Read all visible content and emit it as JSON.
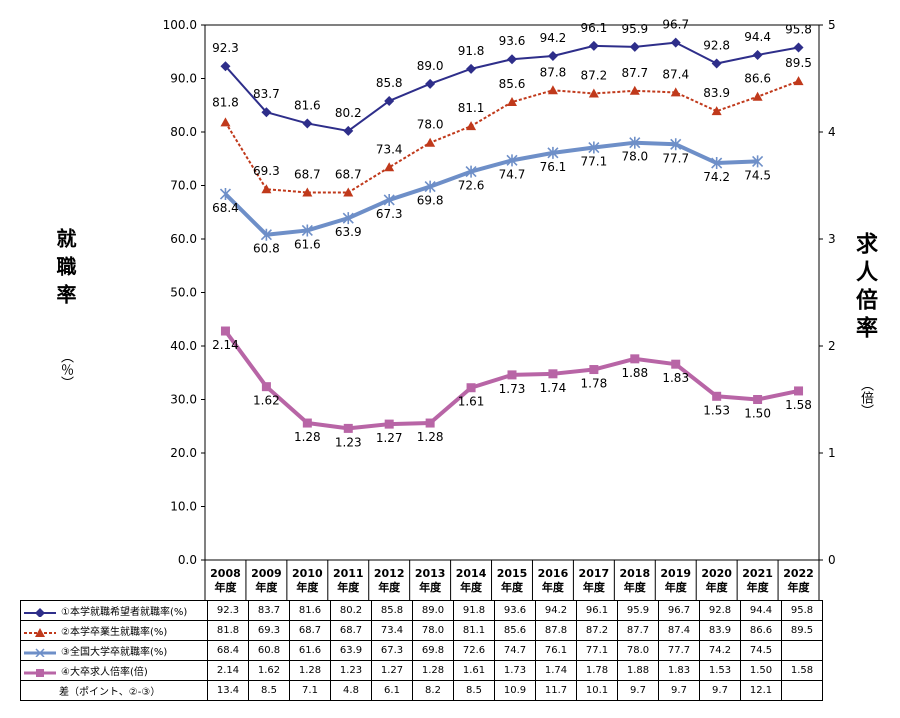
{
  "chart_data": {
    "type": "line",
    "categories": [
      "2008\n年度",
      "2009\n年度",
      "2010\n年度",
      "2011\n年度",
      "2012\n年度",
      "2013\n年度",
      "2014\n年度",
      "2015\n年度",
      "2016\n年度",
      "2017\n年度",
      "2018\n年度",
      "2019\n年度",
      "2020\n年度",
      "2021\n年度",
      "2022\n年度"
    ],
    "ylabel": "就職率",
    "ylabel_unit": "（％）",
    "y2label": "求人倍率",
    "y2label_unit": "（倍）",
    "ylim": [
      0,
      100
    ],
    "y2lim": [
      0,
      5
    ],
    "yticks": [
      "0.0",
      "10.0",
      "20.0",
      "30.0",
      "40.0",
      "50.0",
      "60.0",
      "70.0",
      "80.0",
      "90.0",
      "100.0"
    ],
    "y2ticks": [
      "0",
      "1",
      "2",
      "3",
      "4",
      "5"
    ],
    "grid": false,
    "series": [
      {
        "name": "①本学就職希望者就職率(%)",
        "axis": "left",
        "color": "#2E2E8A",
        "marker": "diamond",
        "values": [
          92.3,
          83.7,
          81.6,
          80.2,
          85.8,
          89.0,
          91.8,
          93.6,
          94.2,
          96.1,
          95.9,
          96.7,
          92.8,
          94.4,
          95.8
        ],
        "labels": [
          "92.3",
          "83.7",
          "81.6",
          "80.2",
          "85.8",
          "89.0",
          "91.8",
          "93.6",
          "94.2",
          "96.1",
          "95.9",
          "96.7",
          "92.8",
          "94.4",
          "95.8"
        ]
      },
      {
        "name": "②本学卒業生就職率(%)",
        "axis": "left",
        "color": "#C0391B",
        "marker": "triangle",
        "values": [
          81.8,
          69.3,
          68.7,
          68.7,
          73.4,
          78.0,
          81.1,
          85.6,
          87.8,
          87.2,
          87.7,
          87.4,
          83.9,
          86.6,
          89.5
        ],
        "labels": [
          "81.8",
          "69.3",
          "68.7",
          "68.7",
          "73.4",
          "78.0",
          "81.1",
          "85.6",
          "87.8",
          "87.2",
          "87.7",
          "87.4",
          "83.9",
          "86.6",
          "89.5"
        ]
      },
      {
        "name": "③全国大学卒就職率(%)",
        "axis": "left",
        "color": "#6E8FC8",
        "marker": "star",
        "values": [
          68.4,
          60.8,
          61.6,
          63.9,
          67.3,
          69.8,
          72.6,
          74.7,
          76.1,
          77.1,
          78.0,
          77.7,
          74.2,
          74.5,
          null
        ],
        "labels": [
          "68.4",
          "60.8",
          "61.6",
          "63.9",
          "67.3",
          "69.8",
          "72.6",
          "74.7",
          "76.1",
          "77.1",
          "78.0",
          "77.7",
          "74.2",
          "74.5",
          ""
        ]
      },
      {
        "name": "④大卒求人倍率(倍)",
        "axis": "right",
        "color": "#B865A6",
        "marker": "square",
        "values": [
          2.14,
          1.62,
          1.28,
          1.23,
          1.27,
          1.28,
          1.61,
          1.73,
          1.74,
          1.78,
          1.88,
          1.83,
          1.53,
          1.5,
          1.58
        ],
        "labels": [
          "2.14",
          "1.62",
          "1.28",
          "1.23",
          "1.27",
          "1.28",
          "1.61",
          "1.73",
          "1.74",
          "1.78",
          "1.88",
          "1.83",
          "1.53",
          "1.50",
          "1.58"
        ]
      }
    ],
    "table": {
      "rows": [
        {
          "label": "①本学就職希望者就職率(%)",
          "series": 0,
          "values": [
            "92.3",
            "83.7",
            "81.6",
            "80.2",
            "85.8",
            "89.0",
            "91.8",
            "93.6",
            "94.2",
            "96.1",
            "95.9",
            "96.7",
            "92.8",
            "94.4",
            "95.8"
          ]
        },
        {
          "label": "②本学卒業生就職率(%)",
          "series": 1,
          "values": [
            "81.8",
            "69.3",
            "68.7",
            "68.7",
            "73.4",
            "78.0",
            "81.1",
            "85.6",
            "87.8",
            "87.2",
            "87.7",
            "87.4",
            "83.9",
            "86.6",
            "89.5"
          ]
        },
        {
          "label": "③全国大学卒就職率(%)",
          "series": 2,
          "values": [
            "68.4",
            "60.8",
            "61.6",
            "63.9",
            "67.3",
            "69.8",
            "72.6",
            "74.7",
            "76.1",
            "77.1",
            "78.0",
            "77.7",
            "74.2",
            "74.5",
            ""
          ]
        },
        {
          "label": "④大卒求人倍率(倍)",
          "series": 3,
          "values": [
            "2.14",
            "1.62",
            "1.28",
            "1.23",
            "1.27",
            "1.28",
            "1.61",
            "1.73",
            "1.74",
            "1.78",
            "1.88",
            "1.83",
            "1.53",
            "1.50",
            "1.58"
          ]
        },
        {
          "label": "差（ポイント、②-③）",
          "series": null,
          "values": [
            "13.4",
            "8.5",
            "7.1",
            "4.8",
            "6.1",
            "8.2",
            "8.5",
            "10.9",
            "11.7",
            "10.1",
            "9.7",
            "9.7",
            "9.7",
            "12.1",
            ""
          ]
        }
      ]
    }
  }
}
